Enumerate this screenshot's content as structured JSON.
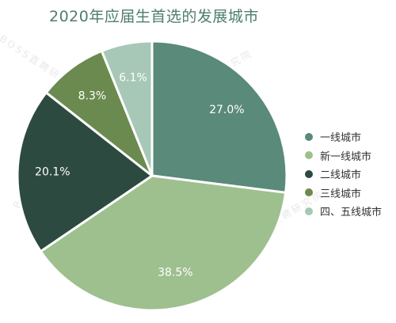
{
  "title": "2020年应届生首选的发展城市",
  "watermark": "BOSS直聘研究院",
  "chart_data": {
    "type": "pie",
    "title": "2020年应届生首选的发展城市",
    "start_angle_deg": 0,
    "direction": "clockwise",
    "legend_position": "right",
    "slices": [
      {
        "label": "一线城市",
        "value": 27.0,
        "value_label": "27.0%",
        "color": "#5a8a79"
      },
      {
        "label": "新一线城市",
        "value": 38.5,
        "value_label": "38.5%",
        "color": "#9ec08f"
      },
      {
        "label": "二线城市",
        "value": 20.1,
        "value_label": "20.1%",
        "color": "#2d4a41"
      },
      {
        "label": "三线城市",
        "value": 8.3,
        "value_label": "8.3%",
        "color": "#6b8a4f"
      },
      {
        "label": "四、五线城市",
        "value": 6.1,
        "value_label": "6.1%",
        "color": "#a7c8b6"
      }
    ]
  }
}
